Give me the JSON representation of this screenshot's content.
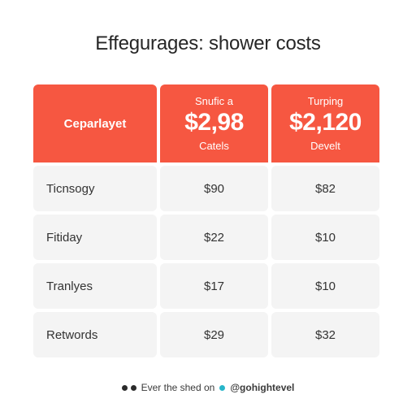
{
  "title": "Effegurages: shower costs",
  "header": {
    "label": "Ceparlayet",
    "col_a": {
      "top": "Snufic a",
      "price": "$2,98",
      "bottom": "Catels"
    },
    "col_b": {
      "top": "Turping",
      "price": "$2,120",
      "bottom": "Develt"
    }
  },
  "rows": [
    {
      "label": "Ticnsogy",
      "a": "$90",
      "b": "$82"
    },
    {
      "label": "Fitiday",
      "a": "$22",
      "b": "$10"
    },
    {
      "label": "Tranlyes",
      "a": "$17",
      "b": "$10"
    },
    {
      "label": "Retwords",
      "a": "$29",
      "b": "$32"
    }
  ],
  "footer": {
    "text": "Ever the shed on",
    "handle": "@gohightevel"
  },
  "colors": {
    "accent": "#f65741",
    "cell": "#f4f4f4",
    "teal": "#27b5c9"
  }
}
